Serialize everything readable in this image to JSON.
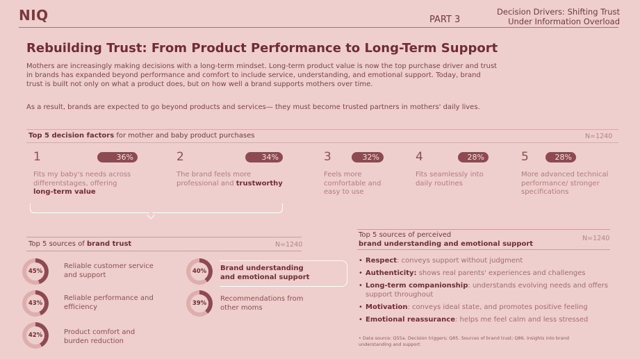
{
  "header": {
    "logo": "NIQ",
    "part": "PART 3",
    "title_line1": "Decision Drivers: Shifting Trust",
    "title_line2": "Under Information Overload"
  },
  "page_title": "Rebuilding Trust: From Product Performance to Long-Term Support",
  "intro": {
    "paragraph1": "Mothers are increasingly making decisions with a long-term mindset. Long-term product value is now the top purchase driver and trust in brands has expanded beyond performance and comfort to include service, understanding, and emotional support. Today, brand trust is built not only on what a product does, but on how well a brand supports mothers over time.",
    "paragraph2": "As a result, brands are expected to go beyond products and services— they must become trusted partners in mothers' daily lives."
  },
  "decision_factors": {
    "title_bold": "Top 5 decision factors",
    "title_rest": " for mother and baby product purchases",
    "n": "N=1240",
    "items": [
      {
        "rank": "1",
        "pct": "36%",
        "value": 36,
        "desc": "Fits my baby's needs across differentstages, offering",
        "desc_bold": "long-term value"
      },
      {
        "rank": "2",
        "pct": "34%",
        "value": 34,
        "desc": "The brand feels more professional and",
        "desc_bold": "trustworthy"
      },
      {
        "rank": "3",
        "pct": "32%",
        "value": 32,
        "desc": "Feels more comfortable and easy to use",
        "desc_bold": ""
      },
      {
        "rank": "4",
        "pct": "28%",
        "value": 28,
        "desc": "Fits seamlessly into daily routines",
        "desc_bold": ""
      },
      {
        "rank": "5",
        "pct": "28%",
        "value": 28,
        "desc": "More advanced technical performance/ stronger specifications",
        "desc_bold": ""
      }
    ]
  },
  "brand_trust": {
    "title_prefix": "Top 5 sources of ",
    "title_bold": "brand trust",
    "n": "N=1240",
    "items": [
      {
        "pct": "45%",
        "value": 45,
        "label": "Reliable customer service and support"
      },
      {
        "pct": "43%",
        "value": 43,
        "label": "Reliable performance and efficiency"
      },
      {
        "pct": "42%",
        "value": 42,
        "label": "Product comfort and burden reduction"
      },
      {
        "pct": "40%",
        "value": 40,
        "label": "Brand understanding and emotional support"
      },
      {
        "pct": "39%",
        "value": 39,
        "label": "Recommendations from other moms"
      }
    ]
  },
  "understanding": {
    "title_line1": "Top 5 sources of perceived",
    "title_line2": "brand understanding and emotional support",
    "n": "N=1240",
    "bullets": [
      {
        "bold": "Respect",
        "text": ": conveys support without judgment"
      },
      {
        "bold": "Authenticity:",
        "text": " shows real parents' experiences and challenges"
      },
      {
        "bold": "Long-term companionship",
        "text": ": understands evolving needs and offers support throughout"
      },
      {
        "bold": "Motivation",
        "text": ": conveys ideal state, and promotes positive feeling"
      },
      {
        "bold": "Emotional reassurance",
        "text": ": helps me feel calm and less stressed"
      }
    ],
    "footnote": "Data source: Q55a. Decision triggers; Q85. Sources of brand trust; Q86. Insights into brand understanding and support"
  },
  "colors": {
    "background": "#efcfcd",
    "accent": "#8d4a50",
    "title": "#6e2d34",
    "donut_track": "#dcaeac"
  }
}
